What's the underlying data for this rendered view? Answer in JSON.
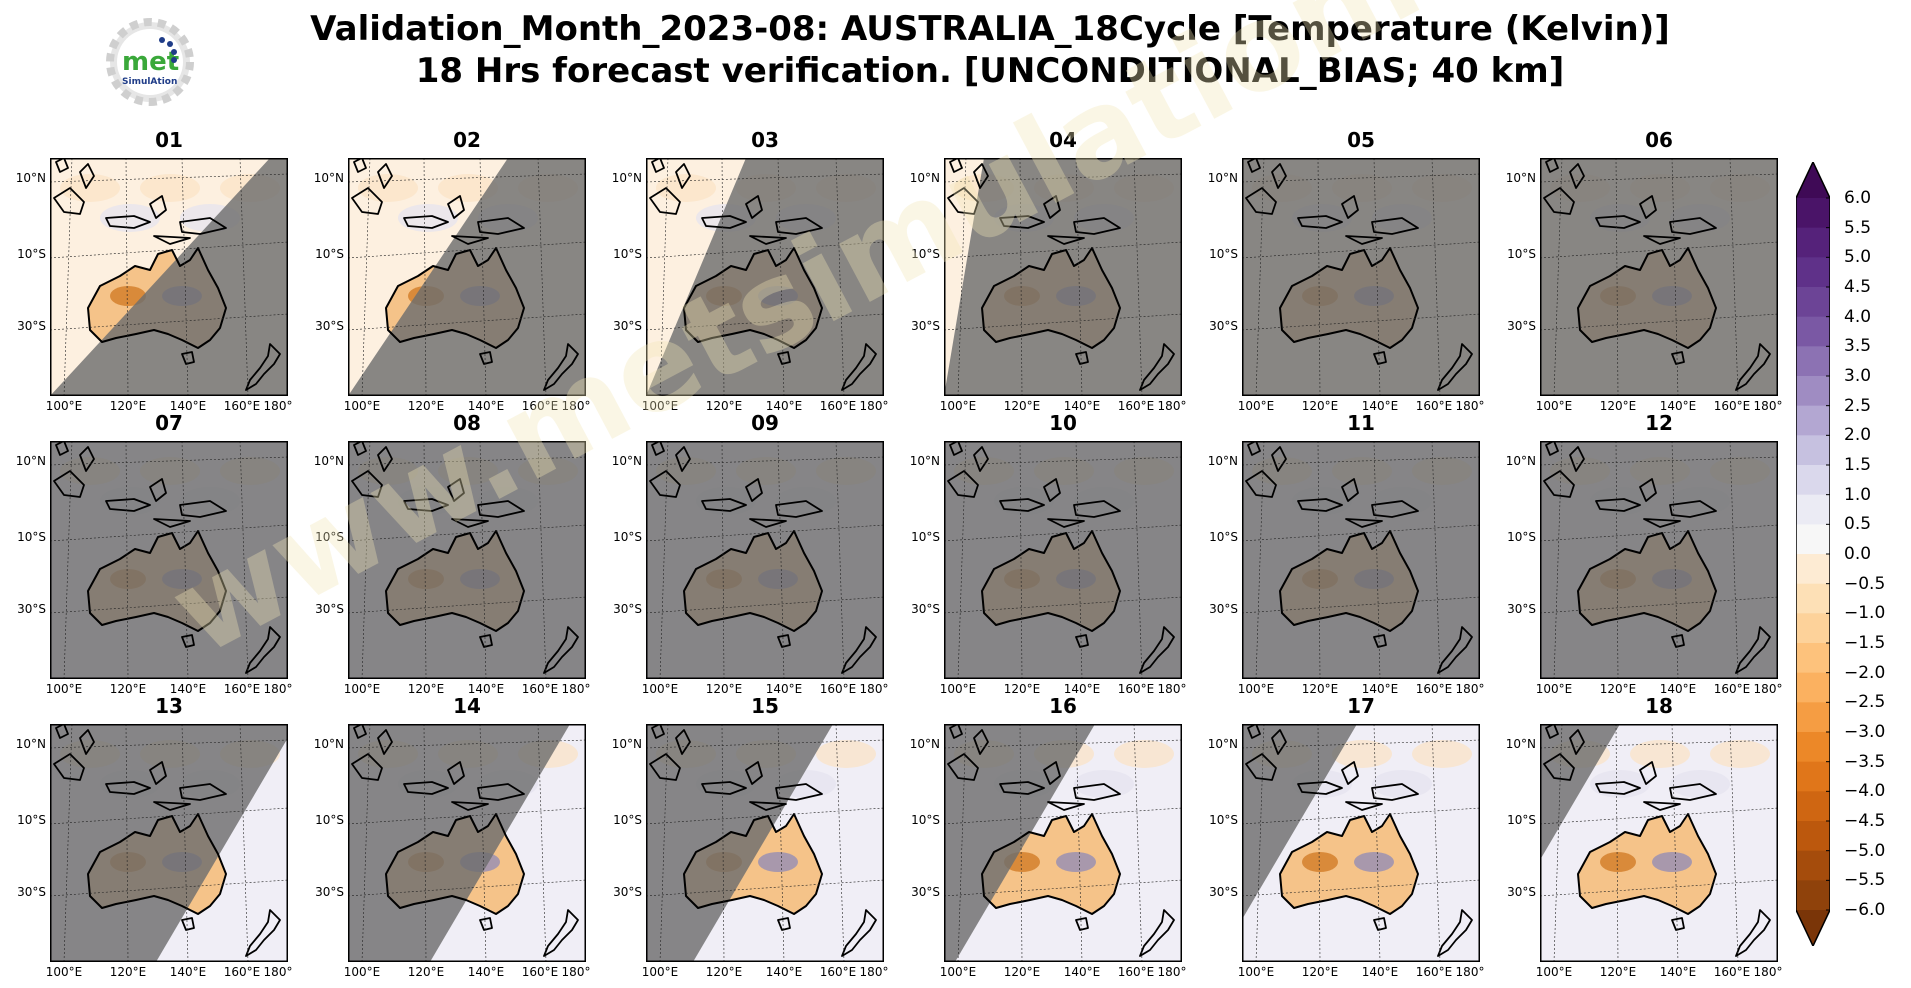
{
  "title": {
    "line1": "Validation_Month_2023-08: AUSTRALIA_18Cycle [Temperature (Kelvin)]",
    "line2": "18 Hrs forecast verification. [UNCONDITIONAL_BIAS; 40 km]"
  },
  "logo": {
    "text_main": "met",
    "text_sub": "SimulAtion",
    "icon": "gear-logo-icon"
  },
  "watermark": "www.metsimulation.com",
  "map_axes": {
    "x_ticks": [
      "100°E",
      "120°E",
      "140°E",
      "160°E",
      "180°"
    ],
    "y_ticks": [
      "10°N",
      "10°S",
      "30°S"
    ]
  },
  "panels": [
    {
      "label": "01",
      "clear_fraction": 0.55
    },
    {
      "label": "02",
      "clear_fraction": 0.4
    },
    {
      "label": "03",
      "clear_fraction": 0.25
    },
    {
      "label": "04",
      "clear_fraction": 0.1
    },
    {
      "label": "05",
      "clear_fraction": 0.0
    },
    {
      "label": "06",
      "clear_fraction": 0.0
    },
    {
      "label": "07",
      "clear_fraction": 0.0
    },
    {
      "label": "08",
      "clear_fraction": 0.0
    },
    {
      "label": "09",
      "clear_fraction": 0.0
    },
    {
      "label": "10",
      "clear_fraction": 0.0
    },
    {
      "label": "11",
      "clear_fraction": 0.0
    },
    {
      "label": "12",
      "clear_fraction": 0.0
    },
    {
      "label": "13",
      "clear_fraction": 0.05
    },
    {
      "label": "14",
      "clear_fraction": 0.15
    },
    {
      "label": "15",
      "clear_fraction": 0.3
    },
    {
      "label": "16",
      "clear_fraction": 0.45
    },
    {
      "label": "17",
      "clear_fraction": 0.6
    },
    {
      "label": "18",
      "clear_fraction": 0.75
    }
  ],
  "colorbar": {
    "levels": [
      "6.0",
      "5.5",
      "5.0",
      "4.5",
      "4.0",
      "3.5",
      "3.0",
      "2.5",
      "2.0",
      "1.5",
      "1.0",
      "0.5",
      "0.0",
      "−0.5",
      "−1.0",
      "−1.5",
      "−2.0",
      "−2.5",
      "−3.0",
      "−3.5",
      "−4.0",
      "−4.5",
      "−5.0",
      "−5.5",
      "−6.0"
    ],
    "colors": [
      "#3f0a56",
      "#4a1468",
      "#55227a",
      "#5f3189",
      "#6c4496",
      "#7a58a4",
      "#8c72b3",
      "#9f8cc2",
      "#b3a7d2",
      "#c6c1e0",
      "#dad8ec",
      "#ebebf4",
      "#f7f7f7",
      "#fdebd3",
      "#fde0b6",
      "#fdd29a",
      "#fdc27c",
      "#fbb160",
      "#f59d43",
      "#ec8828",
      "#e0761a",
      "#cf6612",
      "#bc580d",
      "#a54c0c",
      "#8f420b",
      "#7a3508"
    ]
  },
  "colors": {
    "mask": "#6e6e6e",
    "ocean": "#e8e8f2",
    "land_warm": "#f5c389",
    "land_cool": "#8d8ab8",
    "coast": "#000000"
  }
}
